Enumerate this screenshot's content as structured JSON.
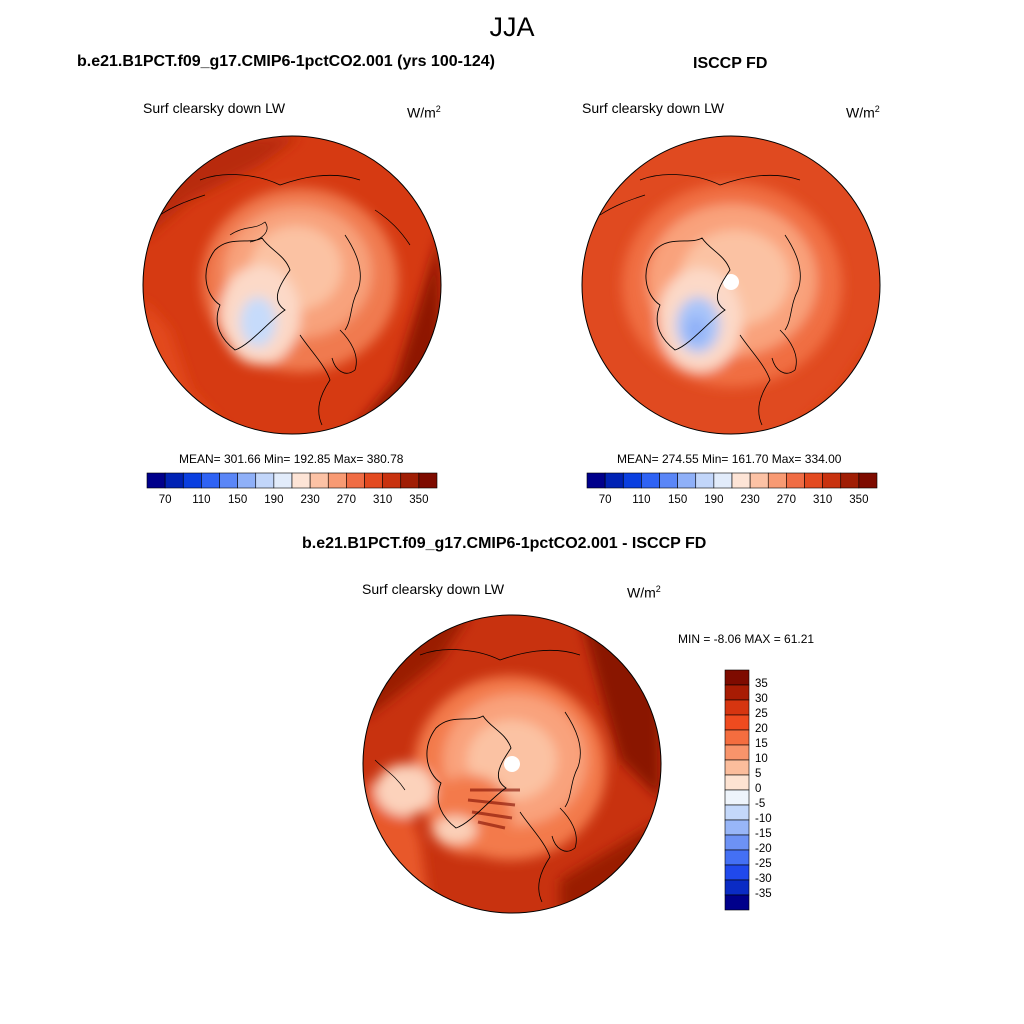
{
  "figure": {
    "title": "JJA"
  },
  "panels": [
    {
      "title": "b.e21.B1PCT.f09_g17.CMIP6-1pctCO2.001 (yrs 100-124)",
      "variable": "Surf clearsky down LW",
      "units": "W/m",
      "units_superscript": "2",
      "stats": "MEAN= 301.66  Min= 192.85  Max= 380.78",
      "colorbar_ticks": [
        "70",
        "110",
        "150",
        "190",
        "230",
        "270",
        "310",
        "350"
      ]
    },
    {
      "title": "ISCCP FD",
      "variable": "Surf clearsky down LW",
      "units": "W/m",
      "units_superscript": "2",
      "stats": "MEAN= 274.55  Min= 161.70  Max= 334.00",
      "colorbar_ticks": [
        "70",
        "110",
        "150",
        "190",
        "230",
        "270",
        "310",
        "350"
      ]
    },
    {
      "title": "b.e21.B1PCT.f09_g17.CMIP6-1pctCO2.001 - ISCCP FD",
      "variable": "Surf clearsky down LW",
      "units": "W/m",
      "units_superscript": "2",
      "stats": "MIN =  -8.06 MAX =  61.21",
      "colorbar_ticks": [
        "35",
        "30",
        "25",
        "20",
        "15",
        "10",
        "5",
        "0",
        "-5",
        "-10",
        "-15",
        "-20",
        "-25",
        "-30",
        "-35"
      ]
    }
  ],
  "colors": {
    "abs_palette": [
      "#00008b",
      "#0022b4",
      "#0a3fe0",
      "#2f63f5",
      "#5a86f7",
      "#8fb0f8",
      "#c2d6fa",
      "#e2ecfb",
      "#fde4d6",
      "#fcc2a5",
      "#f89a73",
      "#f06c44",
      "#e34a20",
      "#c8320f",
      "#a01e05",
      "#7e0b00"
    ],
    "diff_palette": [
      "#7e0b00",
      "#a81c04",
      "#d63510",
      "#ef4b1f",
      "#f46d3f",
      "#f8946b",
      "#fbbd9c",
      "#fde3d2",
      "#eef4fb",
      "#c4d8fa",
      "#98b6f8",
      "#6d92f5",
      "#4470f4",
      "#2049ec",
      "#0a2bc4",
      "#00008b"
    ]
  }
}
